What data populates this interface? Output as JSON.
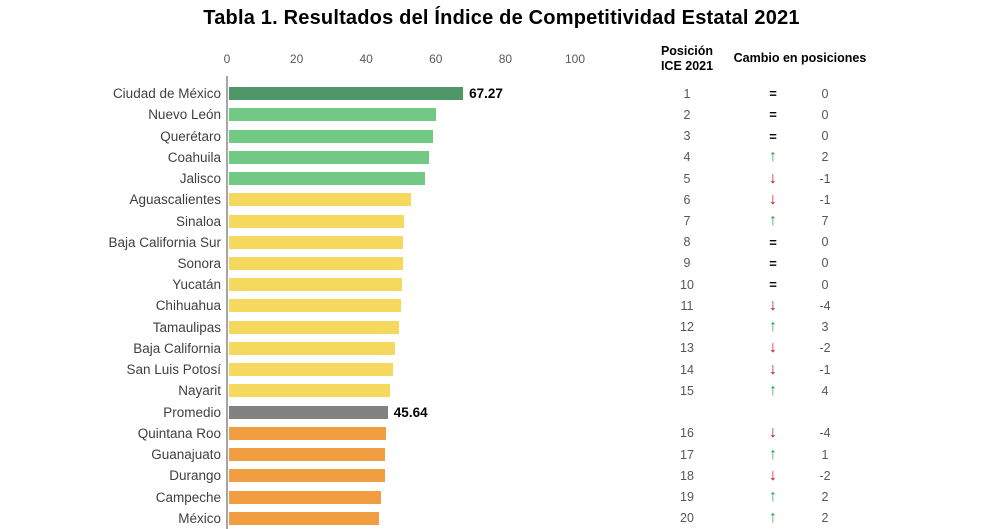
{
  "title": "Tabla 1. Resultados del Índice de Competitividad Estatal 2021",
  "headers": {
    "position_line1": "Posición",
    "position_line2": "ICE 2021",
    "change": "Cambio en posiciones"
  },
  "colors": {
    "bars": {
      "dark_green": "#4f9669",
      "green": "#72c983",
      "yellow": "#f5d95f",
      "gray": "#828282",
      "orange": "#f09e41"
    },
    "change": {
      "up": "#1ca23c",
      "down": "#c01010",
      "equal": "#000000"
    },
    "axis_line": "#a6a6a6",
    "tick_text": "#595959",
    "label_text": "#3f3f3f",
    "number_text": "#55555e"
  },
  "chart_data": {
    "type": "bar",
    "orientation": "horizontal",
    "title": "Tabla 1. Resultados del Índice de Competitividad Estatal 2021",
    "xlabel": "",
    "ylabel": "",
    "xlim": [
      0,
      100
    ],
    "x_ticks": [
      0,
      20,
      40,
      60,
      80,
      100
    ],
    "grid": false,
    "value_column_header": "Posición ICE 2021",
    "change_column_header": "Cambio en posiciones",
    "rows": [
      {
        "label": "Ciudad de México",
        "value": 67.27,
        "value_label": "67.27",
        "color": "dark_green",
        "position": "1",
        "change_symbol": "equal",
        "change": "0"
      },
      {
        "label": "Nuevo León",
        "value": 59.5,
        "color": "green",
        "position": "2",
        "change_symbol": "equal",
        "change": "0"
      },
      {
        "label": "Querétaro",
        "value": 58.5,
        "color": "green",
        "position": "3",
        "change_symbol": "equal",
        "change": "0"
      },
      {
        "label": "Coahuila",
        "value": 57.4,
        "color": "green",
        "position": "4",
        "change_symbol": "up",
        "change": "2"
      },
      {
        "label": "Jalisco",
        "value": 56.2,
        "color": "green",
        "position": "5",
        "change_symbol": "down",
        "change": "-1"
      },
      {
        "label": "Aguascalientes",
        "value": 52.2,
        "color": "yellow",
        "position": "6",
        "change_symbol": "down",
        "change": "-1"
      },
      {
        "label": "Sinaloa",
        "value": 50.4,
        "color": "yellow",
        "position": "7",
        "change_symbol": "up",
        "change": "7"
      },
      {
        "label": "Baja California Sur",
        "value": 50.0,
        "color": "yellow",
        "position": "8",
        "change_symbol": "equal",
        "change": "0"
      },
      {
        "label": "Sonora",
        "value": 50.0,
        "color": "yellow",
        "position": "9",
        "change_symbol": "equal",
        "change": "0"
      },
      {
        "label": "Yucatán",
        "value": 49.6,
        "color": "yellow",
        "position": "10",
        "change_symbol": "equal",
        "change": "0"
      },
      {
        "label": "Chihuahua",
        "value": 49.3,
        "color": "yellow",
        "position": "11",
        "change_symbol": "down",
        "change": "-4"
      },
      {
        "label": "Tamaulipas",
        "value": 48.8,
        "color": "yellow",
        "position": "12",
        "change_symbol": "up",
        "change": "3"
      },
      {
        "label": "Baja California",
        "value": 47.6,
        "color": "yellow",
        "position": "13",
        "change_symbol": "down",
        "change": "-2"
      },
      {
        "label": "San Luis Potosí",
        "value": 47.1,
        "color": "yellow",
        "position": "14",
        "change_symbol": "down",
        "change": "-1"
      },
      {
        "label": "Nayarit",
        "value": 46.3,
        "color": "yellow",
        "position": "15",
        "change_symbol": "up",
        "change": "4"
      },
      {
        "label": "Promedio",
        "value": 45.64,
        "value_label": "45.64",
        "color": "gray",
        "position": "",
        "change_symbol": "none",
        "change": ""
      },
      {
        "label": "Quintana Roo",
        "value": 45.0,
        "color": "orange",
        "position": "16",
        "change_symbol": "down",
        "change": "-4"
      },
      {
        "label": "Guanajuato",
        "value": 44.7,
        "color": "orange",
        "position": "17",
        "change_symbol": "up",
        "change": "1"
      },
      {
        "label": "Durango",
        "value": 44.7,
        "color": "orange",
        "position": "18",
        "change_symbol": "down",
        "change": "-2"
      },
      {
        "label": "Campeche",
        "value": 43.8,
        "color": "orange",
        "position": "19",
        "change_symbol": "up",
        "change": "2"
      },
      {
        "label": "México",
        "value": 43.1,
        "color": "orange",
        "position": "20",
        "change_symbol": "up",
        "change": "2"
      }
    ]
  }
}
